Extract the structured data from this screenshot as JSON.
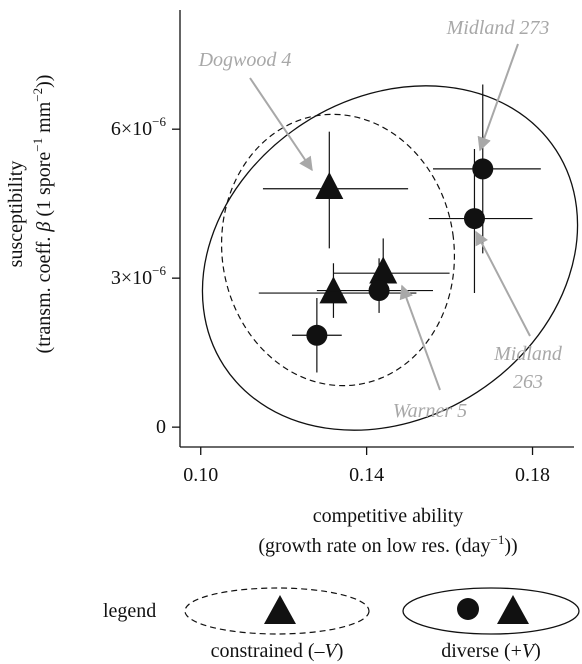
{
  "chart_data": {
    "type": "scatter",
    "xlabel_line1": "competitive ability",
    "xlabel_line2": "(growth rate on low res. (day",
    "xlabel_line2_sup": "−1",
    "xlabel_line2_end": "))",
    "ylabel_line1": "susceptibility",
    "ylabel_line2_a": "(transm. coeff. ",
    "ylabel_line2_beta": "β",
    "ylabel_line2_b": " (1 spore",
    "ylabel_line2_sup1": "−1",
    "ylabel_line2_c": " mm",
    "ylabel_line2_sup2": "−2",
    "ylabel_line2_d": "))",
    "xlim": [
      0.095,
      0.19
    ],
    "ylim": [
      -4e-07,
      8.4e-06
    ],
    "x_ticks": [
      0.1,
      0.14,
      0.18
    ],
    "x_tick_labels": [
      "0.10",
      "0.14",
      "0.18"
    ],
    "y_ticks": [
      0,
      3e-06,
      6e-06
    ],
    "y_tick_labels": [
      "0",
      "3×10",
      "6×10"
    ],
    "y_tick_exp": [
      "",
      "−6",
      "−6"
    ],
    "series": [
      {
        "marker": "triangle",
        "points": [
          {
            "x": 0.131,
            "y": 4.8e-06,
            "xerr": [
              0.115,
              0.15
            ],
            "yerr": [
              3.6e-06,
              5.95e-06
            ]
          },
          {
            "x": 0.144,
            "y": 3.1e-06,
            "xerr": [
              0.132,
              0.16
            ],
            "yerr": [
              2.6e-06,
              3.8e-06
            ]
          },
          {
            "x": 0.132,
            "y": 2.7e-06,
            "xerr": [
              0.114,
              0.152
            ],
            "yerr": [
              2.2e-06,
              3.3e-06
            ]
          }
        ]
      },
      {
        "marker": "circle",
        "points": [
          {
            "x": 0.168,
            "y": 5.2e-06,
            "xerr": [
              0.156,
              0.182
            ],
            "yerr": [
              3.5e-06,
              6.9e-06
            ]
          },
          {
            "x": 0.166,
            "y": 4.2e-06,
            "xerr": [
              0.155,
              0.18
            ],
            "yerr": [
              2.7e-06,
              5.6e-06
            ]
          },
          {
            "x": 0.143,
            "y": 2.75e-06,
            "xerr": [
              0.128,
              0.156
            ],
            "yerr": [
              2.3e-06,
              3.4e-06
            ]
          },
          {
            "x": 0.128,
            "y": 1.85e-06,
            "xerr": [
              0.122,
              0.134
            ],
            "yerr": [
              1.1e-06,
              2.6e-06
            ]
          }
        ]
      }
    ],
    "annotations": [
      {
        "text": "Midland 273"
      },
      {
        "text": "Dogwood 4"
      },
      {
        "text": "Midland"
      },
      {
        "text": "263"
      },
      {
        "text": "Warner 5"
      }
    ],
    "annotation_color": "#a8a8a8",
    "legend": {
      "title": "legend",
      "constrained_label_a": "constrained (–",
      "constrained_label_v": "V",
      "constrained_label_b": ")",
      "diverse_label_a": "diverse (+",
      "diverse_label_v": "V",
      "diverse_label_b": ")"
    },
    "grid": false
  }
}
